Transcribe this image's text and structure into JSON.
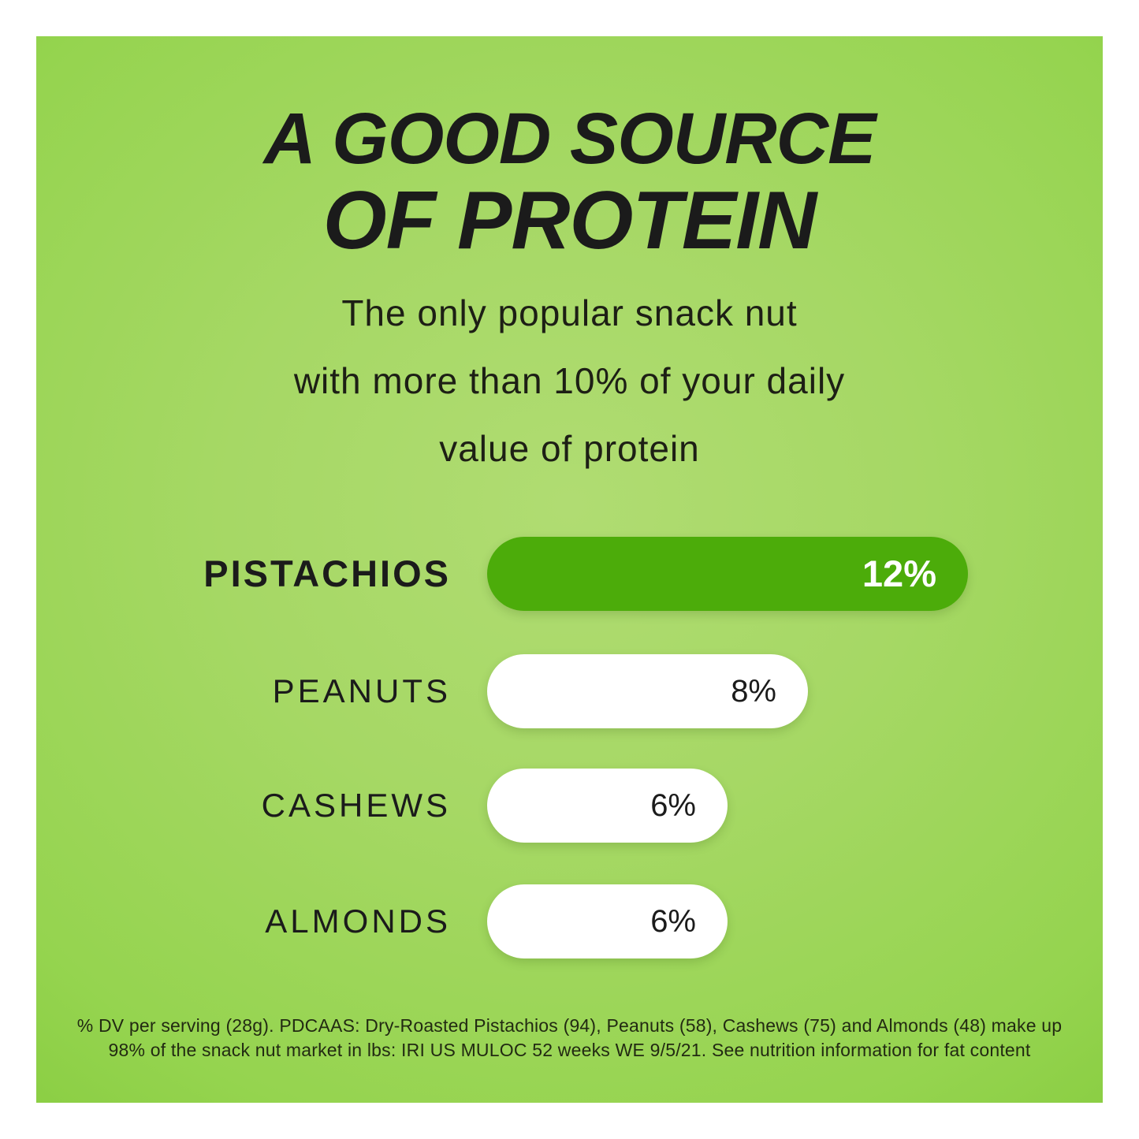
{
  "page": {
    "title_line1": "A GOOD SOURCE",
    "title_line2": "OF PROTEIN",
    "subtitle_line1": "The only popular snack nut",
    "subtitle_line2": "with more than 10% of your daily",
    "subtitle_line3": "value of protein",
    "footnote_line1": "% DV per serving (28g). PDCAAS: Dry-Roasted Pistachios (94), Peanuts (58), Cashews (75) and Almonds (48) make up",
    "footnote_line2": "98% of the snack nut market in lbs: IRI US MULOC 52 weeks WE 9/5/21. See nutrition information for fat content"
  },
  "colors": {
    "page_background": "#ffffff",
    "panel_center_green": "#b0dc72",
    "panel_edge_green": "#71c029",
    "highlight_bar_green": "#4cac0a",
    "bar_white": "#ffffff",
    "text_dark": "#1b1b1b",
    "value_on_green": "#ffffff"
  },
  "chart_data": {
    "type": "bar",
    "orientation": "horizontal",
    "title": "A GOOD SOURCE OF PROTEIN",
    "subtitle": "The only popular snack nut with more than 10% of your daily value of protein",
    "categories": [
      "PISTACHIOS",
      "PEANUTS",
      "CASHEWS",
      "ALMONDS"
    ],
    "values": [
      12,
      8,
      6,
      6
    ],
    "value_labels": [
      "12%",
      "8%",
      "6%",
      "6%"
    ],
    "unit": "% daily value of protein per 28g serving",
    "max_value": 12,
    "highlighted_index": 0,
    "legend": "none",
    "grid": false
  }
}
